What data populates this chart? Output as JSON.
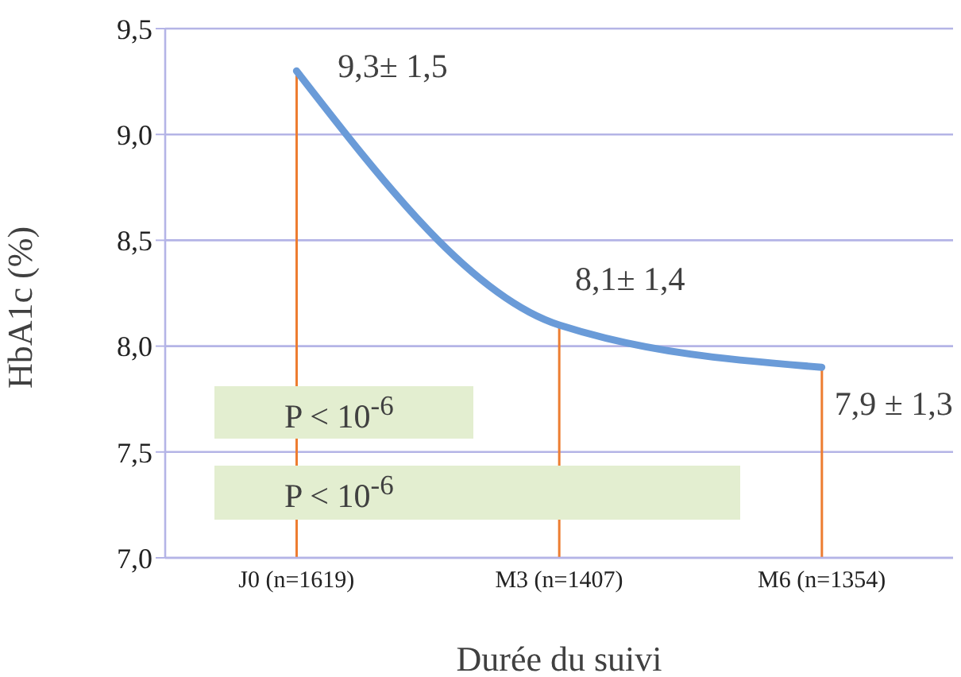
{
  "chart_data": {
    "type": "line",
    "xlabel": "Durée du suivi",
    "ylabel": "HbA1c (%)",
    "categories": [
      "J0 (n=1619)",
      "M3 (n=1407)",
      "M6 (n=1354)"
    ],
    "series": [
      {
        "type": "bar",
        "color": "#ed7d31",
        "values": [
          9.3,
          8.1,
          7.9
        ]
      },
      {
        "color": "#6a9bd8",
        "values": [
          9.3,
          8.1,
          7.9
        ],
        "value_labels": [
          "9,3± 1,5",
          "8,1± 1,4",
          "7,9 ± 1,3"
        ]
      }
    ],
    "ylim": [
      7,
      9.5
    ],
    "yticks": [
      {
        "value": 7,
        "label": "7,0"
      },
      {
        "value": 7.5,
        "label": "7,5"
      },
      {
        "value": 8,
        "label": "8,0"
      },
      {
        "value": 8.5,
        "label": "8,5"
      },
      {
        "value": 9,
        "label": "9,0"
      },
      {
        "value": 9.5,
        "label": "9,5"
      }
    ],
    "grid": "y",
    "annotations": [
      "P < 10$^{-6}$",
      "P < 10$^{-6}$"
    ]
  }
}
